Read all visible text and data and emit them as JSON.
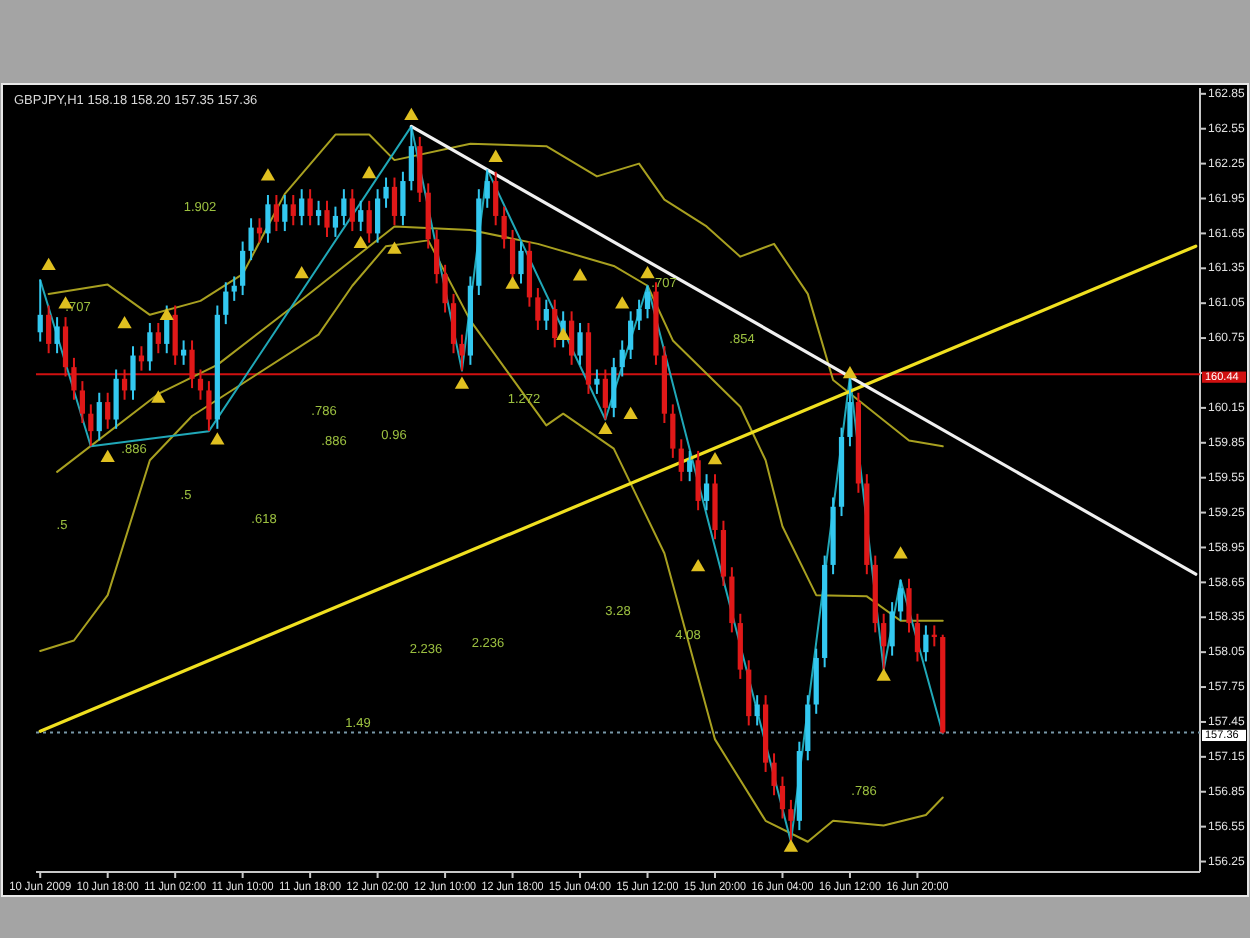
{
  "chart_data": {
    "type": "candlestick",
    "title": "GBPJPY,H1  158.18 158.20 157.35 157.36",
    "categories": [
      "10 Jun 2009",
      null,
      null,
      null,
      null,
      null,
      null,
      null,
      "10 Jun 18:00",
      null,
      null,
      null,
      null,
      null,
      null,
      null,
      "11 Jun 02:00",
      null,
      null,
      null,
      null,
      null,
      null,
      null,
      "11 Jun 10:00",
      null,
      null,
      null,
      null,
      null,
      null,
      null,
      "11 Jun 18:00",
      null,
      null,
      null,
      null,
      null,
      null,
      null,
      "12 Jun 02:00",
      null,
      null,
      null,
      null,
      null,
      null,
      null,
      "12 Jun 10:00",
      null,
      null,
      null,
      null,
      null,
      null,
      null,
      "12 Jun 18:00",
      null,
      null,
      null,
      null,
      null,
      null,
      null,
      "15 Jun 04:00",
      null,
      null,
      null,
      null,
      null,
      null,
      null,
      "15 Jun 12:00",
      null,
      null,
      null,
      null,
      null,
      null,
      null,
      "15 Jun 20:00",
      null,
      null,
      null,
      null,
      null,
      null,
      null,
      "16 Jun 04:00",
      null,
      null,
      null,
      null,
      null,
      null,
      null,
      "16 Jun 12:00",
      null,
      null,
      null,
      null,
      null,
      null,
      null,
      "16 Jun 20:00",
      null,
      null,
      null,
      null,
      null,
      null,
      null,
      null,
      null,
      null,
      null,
      null,
      null,
      null,
      null,
      null,
      null,
      null,
      null,
      null,
      null,
      null,
      null,
      null,
      null,
      null,
      null,
      null,
      null,
      null,
      null,
      null,
      null
    ],
    "ohlc": [
      [
        160.8,
        161.25,
        160.72,
        160.95
      ],
      [
        160.95,
        161.03,
        160.62,
        160.7
      ],
      [
        160.7,
        160.93,
        160.62,
        160.85
      ],
      [
        160.85,
        160.93,
        160.42,
        160.5
      ],
      [
        160.5,
        160.58,
        160.22,
        160.3
      ],
      [
        160.3,
        160.38,
        160.02,
        160.1
      ],
      [
        160.1,
        160.18,
        159.82,
        159.95
      ],
      [
        159.95,
        160.28,
        159.87,
        160.2
      ],
      [
        160.2,
        160.28,
        159.97,
        160.05
      ],
      [
        160.05,
        160.48,
        159.97,
        160.4
      ],
      [
        160.4,
        160.48,
        160.22,
        160.3
      ],
      [
        160.3,
        160.68,
        160.22,
        160.6
      ],
      [
        160.6,
        160.68,
        160.47,
        160.55
      ],
      [
        160.55,
        160.88,
        160.47,
        160.8
      ],
      [
        160.8,
        160.88,
        160.62,
        160.7
      ],
      [
        160.7,
        161.03,
        160.62,
        160.95
      ],
      [
        160.95,
        161.03,
        160.52,
        160.6
      ],
      [
        160.6,
        160.73,
        160.52,
        160.65
      ],
      [
        160.65,
        160.73,
        160.32,
        160.4
      ],
      [
        160.4,
        160.48,
        160.22,
        160.3
      ],
      [
        160.3,
        160.38,
        159.95,
        160.05
      ],
      [
        160.05,
        161.03,
        159.97,
        160.95
      ],
      [
        160.95,
        161.23,
        160.87,
        161.15
      ],
      [
        161.15,
        161.28,
        161.07,
        161.2
      ],
      [
        161.2,
        161.58,
        161.12,
        161.5
      ],
      [
        161.5,
        161.78,
        161.42,
        161.7
      ],
      [
        161.7,
        161.78,
        161.57,
        161.65
      ],
      [
        161.65,
        161.98,
        161.57,
        161.9
      ],
      [
        161.9,
        161.98,
        161.67,
        161.75
      ],
      [
        161.75,
        161.98,
        161.67,
        161.9
      ],
      [
        161.9,
        161.98,
        161.72,
        161.8
      ],
      [
        161.8,
        162.03,
        161.72,
        161.95
      ],
      [
        161.95,
        162.03,
        161.72,
        161.8
      ],
      [
        161.8,
        161.93,
        161.72,
        161.85
      ],
      [
        161.85,
        161.93,
        161.62,
        161.7
      ],
      [
        161.7,
        161.88,
        161.62,
        161.8
      ],
      [
        161.8,
        162.03,
        161.72,
        161.95
      ],
      [
        161.95,
        162.03,
        161.67,
        161.75
      ],
      [
        161.75,
        161.93,
        161.67,
        161.85
      ],
      [
        161.85,
        161.93,
        161.57,
        161.65
      ],
      [
        161.65,
        162.03,
        161.57,
        161.95
      ],
      [
        161.95,
        162.13,
        161.87,
        162.05
      ],
      [
        162.05,
        162.13,
        161.72,
        161.8
      ],
      [
        161.8,
        162.18,
        161.72,
        162.1
      ],
      [
        162.1,
        162.57,
        162.02,
        162.4
      ],
      [
        162.4,
        162.48,
        161.92,
        162.0
      ],
      [
        162.0,
        162.08,
        161.52,
        161.6
      ],
      [
        161.6,
        161.68,
        161.22,
        161.3
      ],
      [
        161.3,
        161.38,
        160.97,
        161.05
      ],
      [
        161.05,
        161.13,
        160.62,
        160.7
      ],
      [
        160.7,
        160.78,
        160.47,
        160.6
      ],
      [
        160.6,
        161.28,
        160.52,
        161.2
      ],
      [
        161.2,
        162.03,
        161.12,
        161.95
      ],
      [
        161.95,
        162.2,
        161.87,
        162.1
      ],
      [
        162.1,
        162.18,
        161.72,
        161.8
      ],
      [
        161.8,
        161.88,
        161.52,
        161.6
      ],
      [
        161.6,
        161.68,
        161.22,
        161.3
      ],
      [
        161.3,
        161.58,
        161.22,
        161.5
      ],
      [
        161.5,
        161.58,
        161.02,
        161.1
      ],
      [
        161.1,
        161.18,
        160.82,
        160.9
      ],
      [
        160.9,
        161.08,
        160.82,
        161.0
      ],
      [
        161.0,
        161.08,
        160.67,
        160.75
      ],
      [
        160.75,
        160.98,
        160.67,
        160.9
      ],
      [
        160.9,
        160.98,
        160.52,
        160.6
      ],
      [
        160.6,
        160.88,
        160.52,
        160.8
      ],
      [
        160.8,
        160.88,
        160.27,
        160.35
      ],
      [
        160.35,
        160.48,
        160.27,
        160.4
      ],
      [
        160.4,
        160.48,
        160.05,
        160.15
      ],
      [
        160.15,
        160.58,
        160.07,
        160.5
      ],
      [
        160.5,
        160.73,
        160.42,
        160.65
      ],
      [
        160.65,
        160.98,
        160.57,
        160.9
      ],
      [
        160.9,
        161.08,
        160.82,
        161.0
      ],
      [
        161.0,
        161.2,
        160.92,
        161.15
      ],
      [
        161.15,
        161.23,
        160.52,
        160.6
      ],
      [
        160.6,
        160.68,
        160.02,
        160.1
      ],
      [
        160.1,
        160.18,
        159.72,
        159.8
      ],
      [
        159.8,
        159.88,
        159.52,
        159.6
      ],
      [
        159.6,
        159.78,
        159.52,
        159.7
      ],
      [
        159.7,
        159.78,
        159.27,
        159.35
      ],
      [
        159.35,
        159.58,
        159.27,
        159.5
      ],
      [
        159.5,
        159.58,
        159.02,
        159.1
      ],
      [
        159.1,
        159.18,
        158.62,
        158.7
      ],
      [
        158.7,
        158.78,
        158.22,
        158.3
      ],
      [
        158.3,
        158.38,
        157.82,
        157.9
      ],
      [
        157.9,
        157.98,
        157.42,
        157.5
      ],
      [
        157.5,
        157.68,
        157.42,
        157.6
      ],
      [
        157.6,
        157.68,
        157.02,
        157.1
      ],
      [
        157.1,
        157.18,
        156.82,
        156.9
      ],
      [
        156.9,
        156.98,
        156.62,
        156.7
      ],
      [
        156.7,
        156.78,
        156.42,
        156.6
      ],
      [
        156.6,
        157.28,
        156.52,
        157.2
      ],
      [
        157.2,
        157.68,
        157.12,
        157.6
      ],
      [
        157.6,
        158.08,
        157.52,
        158.0
      ],
      [
        158.0,
        158.88,
        157.92,
        158.8
      ],
      [
        158.8,
        159.38,
        158.72,
        159.3
      ],
      [
        159.3,
        159.98,
        159.22,
        159.9
      ],
      [
        159.9,
        160.42,
        159.82,
        160.2
      ],
      [
        160.2,
        160.28,
        159.42,
        159.5
      ],
      [
        159.5,
        159.58,
        158.72,
        158.8
      ],
      [
        158.8,
        158.88,
        158.22,
        158.3
      ],
      [
        158.3,
        158.38,
        157.9,
        158.1
      ],
      [
        158.1,
        158.48,
        158.02,
        158.4
      ],
      [
        158.4,
        158.67,
        158.32,
        158.6
      ],
      [
        158.6,
        158.68,
        158.22,
        158.3
      ],
      [
        158.3,
        158.38,
        157.97,
        158.05
      ],
      [
        158.05,
        158.28,
        157.97,
        158.2
      ],
      [
        158.2,
        158.28,
        158.1,
        158.18
      ],
      [
        158.18,
        158.2,
        157.35,
        157.36
      ],
      null,
      null,
      null,
      null,
      null,
      null,
      null,
      null,
      null,
      null,
      null,
      null,
      null,
      null,
      null,
      null,
      null,
      null,
      null,
      null,
      null,
      null,
      null,
      null,
      null,
      null,
      null,
      null,
      null,
      null
    ],
    "colors": [
      "#33c8f0",
      "#e01818",
      "#33c8f0",
      "#e01818",
      "#e01818",
      "#e01818",
      "#e01818",
      "#33c8f0",
      "#e01818",
      "#33c8f0",
      "#e01818",
      "#33c8f0",
      "#e01818",
      "#33c8f0",
      "#e01818",
      "#33c8f0",
      "#e01818",
      "#33c8f0",
      "#e01818",
      "#e01818",
      "#e01818",
      "#33c8f0",
      "#33c8f0",
      "#33c8f0",
      "#33c8f0",
      "#33c8f0",
      "#e01818",
      "#33c8f0",
      "#e01818",
      "#33c8f0",
      "#e01818",
      "#33c8f0",
      "#e01818",
      "#33c8f0",
      "#e01818",
      "#33c8f0",
      "#33c8f0",
      "#e01818",
      "#33c8f0",
      "#e01818",
      "#33c8f0",
      "#33c8f0",
      "#e01818",
      "#33c8f0",
      "#33c8f0",
      "#e01818",
      "#e01818",
      "#e01818",
      "#e01818",
      "#e01818",
      "#e01818",
      "#33c8f0",
      "#33c8f0",
      "#33c8f0",
      "#e01818",
      "#e01818",
      "#e01818",
      "#33c8f0",
      "#e01818",
      "#e01818",
      "#33c8f0",
      "#e01818",
      "#33c8f0",
      "#e01818",
      "#33c8f0",
      "#e01818",
      "#33c8f0",
      "#e01818",
      "#33c8f0",
      "#33c8f0",
      "#33c8f0",
      "#33c8f0",
      "#33c8f0",
      "#e01818",
      "#e01818",
      "#e01818",
      "#e01818",
      "#33c8f0",
      "#e01818",
      "#33c8f0",
      "#e01818",
      "#e01818",
      "#e01818",
      "#e01818",
      "#e01818",
      "#33c8f0",
      "#e01818",
      "#e01818",
      "#e01818",
      "#e01818",
      "#33c8f0",
      "#33c8f0",
      "#33c8f0",
      "#33c8f0",
      "#33c8f0",
      "#33c8f0",
      "#33c8f0",
      "#e01818",
      "#e01818",
      "#e01818",
      "#e01818",
      "#33c8f0",
      "#33c8f0",
      "#e01818",
      "#e01818",
      "#33c8f0",
      "#e01818",
      "#e01818",
      null,
      null,
      null,
      null,
      null,
      null,
      null,
      null,
      null,
      null,
      null,
      null,
      null,
      null,
      null,
      null,
      null,
      null,
      null,
      null,
      null,
      null,
      null,
      null,
      null,
      null,
      null,
      null,
      null,
      null
    ],
    "series": [
      {
        "type": "line",
        "color": "#a8a020",
        "values": [
          null,
          161.13,
          null,
          null,
          null,
          null,
          null,
          null,
          161.21,
          null,
          null,
          null,
          null,
          160.95,
          null,
          null,
          null,
          null,
          null,
          161.07,
          null,
          null,
          null,
          null,
          161.3,
          null,
          null,
          null,
          null,
          161.99,
          null,
          null,
          null,
          null,
          null,
          162.5,
          null,
          null,
          null,
          162.5,
          null,
          null,
          162.28,
          null,
          null,
          null,
          null,
          null,
          null,
          null,
          null,
          162.42,
          null,
          null,
          null,
          null,
          null,
          null,
          null,
          null,
          162.4,
          null,
          null,
          null,
          null,
          null,
          162.14,
          null,
          null,
          null,
          null,
          162.25,
          null,
          null,
          161.94,
          null,
          null,
          null,
          null,
          161.71,
          null,
          null,
          null,
          161.45,
          null,
          null,
          null,
          161.56,
          null,
          null,
          null,
          161.13,
          null,
          null,
          160.39,
          null,
          null,
          null,
          null,
          null,
          null,
          null,
          null,
          159.87,
          null,
          null,
          null,
          159.82,
          null,
          null,
          null,
          null,
          null,
          null,
          null,
          null,
          null,
          null,
          null,
          null,
          null,
          null,
          null,
          null,
          null,
          null,
          null,
          null,
          null,
          null,
          null,
          null,
          null,
          null,
          null,
          null,
          null,
          null
        ]
      },
      {
        "type": "line",
        "color": "#a8a020",
        "values": [
          null,
          null,
          159.6,
          null,
          null,
          null,
          null,
          null,
          null,
          null,
          null,
          null,
          null,
          null,
          160.27,
          null,
          null,
          null,
          null,
          null,
          null,
          160.52,
          null,
          null,
          null,
          null,
          null,
          null,
          null,
          null,
          null,
          161.08,
          null,
          null,
          null,
          null,
          null,
          null,
          null,
          null,
          null,
          null,
          161.71,
          null,
          null,
          null,
          null,
          null,
          null,
          null,
          null,
          161.68,
          null,
          null,
          null,
          null,
          null,
          null,
          null,
          161.56,
          null,
          null,
          null,
          null,
          null,
          null,
          null,
          null,
          161.37,
          null,
          null,
          null,
          161.2,
          null,
          null,
          160.73,
          null,
          null,
          null,
          null,
          null,
          null,
          null,
          160.16,
          null,
          null,
          159.7,
          null,
          159.13,
          null,
          null,
          null,
          158.54,
          null,
          null,
          null,
          null,
          null,
          158.53,
          null,
          null,
          null,
          158.32,
          null,
          null,
          null,
          null,
          158.32,
          null,
          null,
          null,
          null,
          null,
          null,
          null,
          null,
          null,
          null,
          null,
          null,
          null,
          null,
          null,
          null,
          null,
          null,
          null,
          null,
          null,
          null,
          null,
          null,
          null,
          null,
          null,
          null,
          null,
          null
        ]
      },
      {
        "type": "line",
        "color": "#a8a020",
        "values": [
          158.06,
          null,
          null,
          null,
          158.15,
          null,
          null,
          null,
          158.54,
          null,
          null,
          null,
          null,
          159.7,
          null,
          null,
          null,
          null,
          160.08,
          null,
          null,
          null,
          null,
          null,
          null,
          null,
          null,
          null,
          null,
          null,
          null,
          null,
          null,
          160.78,
          null,
          null,
          null,
          161.2,
          null,
          null,
          null,
          161.54,
          null,
          null,
          null,
          null,
          161.59,
          null,
          null,
          null,
          null,
          160.9,
          null,
          null,
          null,
          null,
          null,
          null,
          null,
          null,
          160.0,
          null,
          160.1,
          null,
          null,
          null,
          null,
          null,
          159.8,
          null,
          null,
          null,
          null,
          null,
          158.9,
          null,
          null,
          null,
          null,
          null,
          157.3,
          null,
          null,
          null,
          null,
          null,
          156.6,
          null,
          null,
          null,
          null,
          156.42,
          null,
          null,
          156.6,
          null,
          null,
          null,
          null,
          null,
          156.56,
          null,
          null,
          null,
          null,
          156.65,
          null,
          156.8,
          null,
          null,
          null,
          null,
          null,
          null,
          null,
          null,
          null,
          null,
          null,
          null,
          null,
          null,
          null,
          null,
          null,
          null,
          null,
          null,
          null,
          null,
          null,
          null,
          null,
          null,
          null,
          null,
          null,
          null
        ]
      },
      {
        "type": "line",
        "color": "#20a8b8",
        "values": [
          161.25,
          null,
          null,
          null,
          null,
          null,
          159.82,
          null,
          null,
          null,
          null,
          null,
          null,
          null,
          null,
          null,
          null,
          null,
          null,
          null,
          159.95,
          null,
          null,
          null,
          null,
          null,
          null,
          null,
          null,
          null,
          null,
          null,
          null,
          null,
          null,
          null,
          null,
          null,
          null,
          null,
          null,
          null,
          null,
          null,
          162.57,
          null,
          null,
          null,
          null,
          null,
          160.47,
          null,
          null,
          162.2,
          null,
          null,
          null,
          null,
          null,
          null,
          null,
          null,
          null,
          null,
          null,
          null,
          null,
          160.05,
          null,
          null,
          null,
          null,
          161.2,
          null,
          null,
          null,
          null,
          null,
          null,
          null,
          null,
          null,
          null,
          null,
          null,
          null,
          null,
          null,
          null,
          156.42,
          null,
          null,
          null,
          null,
          null,
          null,
          160.42,
          null,
          null,
          null,
          157.9,
          null,
          158.67,
          null,
          null,
          null,
          null,
          157.35,
          null,
          null,
          null,
          null,
          null,
          null,
          null,
          null,
          null,
          null,
          null,
          null,
          null,
          null,
          null,
          null,
          null,
          null,
          null,
          null,
          null,
          null,
          null,
          null,
          null,
          null,
          null,
          null,
          null,
          null
        ]
      },
      {
        "type": "line",
        "color": "#f0e020",
        "values": [
          157.37,
          null,
          null,
          null,
          null,
          null,
          null,
          null,
          null,
          null,
          null,
          null,
          null,
          null,
          null,
          null,
          null,
          null,
          null,
          null,
          null,
          null,
          null,
          null,
          null,
          null,
          null,
          null,
          null,
          null,
          null,
          null,
          null,
          null,
          null,
          null,
          null,
          null,
          null,
          null,
          null,
          null,
          null,
          null,
          null,
          null,
          null,
          null,
          null,
          null,
          null,
          null,
          null,
          null,
          null,
          null,
          null,
          null,
          null,
          null,
          null,
          null,
          null,
          null,
          null,
          null,
          null,
          null,
          null,
          null,
          null,
          null,
          null,
          null,
          null,
          null,
          null,
          null,
          null,
          null,
          null,
          null,
          null,
          null,
          null,
          null,
          null,
          null,
          null,
          null,
          null,
          null,
          null,
          null,
          null,
          null,
          null,
          null,
          null,
          null,
          null,
          null,
          null,
          null,
          null,
          null,
          null,
          null,
          null,
          null,
          null,
          null,
          null,
          null,
          null,
          null,
          null,
          null,
          null,
          null,
          null,
          null,
          null,
          null,
          null,
          null,
          null,
          null,
          null,
          null,
          null,
          null,
          null,
          null,
          null,
          null,
          null,
          161.54
        ]
      },
      {
        "type": "line",
        "color": "#f0f0f0",
        "values": [
          null,
          null,
          null,
          null,
          null,
          null,
          null,
          null,
          null,
          null,
          null,
          null,
          null,
          null,
          null,
          null,
          null,
          null,
          null,
          null,
          null,
          null,
          null,
          null,
          null,
          null,
          null,
          null,
          null,
          null,
          null,
          null,
          null,
          null,
          null,
          null,
          null,
          null,
          null,
          null,
          null,
          null,
          null,
          null,
          162.57,
          null,
          null,
          null,
          null,
          null,
          null,
          null,
          null,
          null,
          null,
          null,
          null,
          null,
          null,
          null,
          null,
          null,
          null,
          null,
          null,
          null,
          null,
          null,
          null,
          null,
          null,
          null,
          null,
          null,
          null,
          null,
          null,
          null,
          null,
          null,
          null,
          null,
          null,
          null,
          null,
          null,
          null,
          null,
          null,
          null,
          null,
          null,
          null,
          null,
          null,
          null,
          null,
          null,
          null,
          null,
          null,
          null,
          null,
          null,
          null,
          null,
          null,
          null,
          null,
          null,
          null,
          null,
          null,
          null,
          null,
          null,
          null,
          null,
          null,
          null,
          null,
          null,
          null,
          null,
          null,
          null,
          null,
          null,
          null,
          null,
          null,
          null,
          null,
          null,
          null,
          null,
          null,
          158.72
        ]
      },
      {
        "type": "scatter",
        "color": "#e0c020",
        "marker": "triangle",
        "values": [
          null,
          161.37,
          null,
          161.04,
          null,
          null,
          null,
          null,
          null,
          null,
          160.87,
          null,
          null,
          null,
          null,
          160.94,
          null,
          null,
          null,
          null,
          null,
          null,
          null,
          null,
          null,
          null,
          null,
          162.14,
          null,
          null,
          null,
          null,
          null,
          null,
          null,
          null,
          null,
          null,
          null,
          162.16,
          null,
          null,
          null,
          null,
          162.66,
          null,
          null,
          null,
          null,
          null,
          null,
          null,
          null,
          null,
          162.3,
          null,
          null,
          null,
          null,
          null,
          null,
          null,
          null,
          null,
          161.28,
          null,
          null,
          null,
          null,
          161.04,
          null,
          null,
          161.3,
          null,
          null,
          null,
          null,
          null,
          null,
          null,
          159.7,
          null,
          null,
          null,
          null,
          null,
          null,
          null,
          null,
          null,
          null,
          null,
          null,
          null,
          null,
          null,
          160.44,
          null,
          null,
          null,
          null,
          null,
          158.89,
          null,
          null,
          null,
          null,
          null,
          null,
          null,
          null,
          null,
          null,
          null,
          null,
          null,
          null,
          null,
          null,
          null,
          null,
          null,
          null,
          null,
          null,
          null,
          null,
          null,
          null,
          null,
          null,
          null,
          null,
          null,
          null,
          null,
          null,
          null
        ]
      },
      {
        "type": "scatter",
        "color": "#e0c020",
        "marker": "triangle",
        "values": [
          null,
          null,
          null,
          null,
          null,
          null,
          null,
          null,
          159.72,
          null,
          null,
          null,
          null,
          null,
          160.23,
          null,
          null,
          null,
          null,
          null,
          null,
          159.87,
          null,
          null,
          null,
          null,
          null,
          null,
          null,
          null,
          null,
          161.3,
          null,
          null,
          null,
          null,
          null,
          null,
          161.56,
          null,
          null,
          null,
          161.51,
          null,
          null,
          null,
          null,
          null,
          null,
          null,
          160.35,
          null,
          null,
          null,
          null,
          null,
          161.21,
          null,
          null,
          null,
          null,
          null,
          160.77,
          null,
          null,
          null,
          null,
          159.96,
          null,
          null,
          160.09,
          null,
          null,
          null,
          null,
          null,
          null,
          null,
          158.78,
          null,
          null,
          null,
          null,
          null,
          null,
          null,
          null,
          null,
          null,
          156.37,
          null,
          null,
          null,
          null,
          null,
          null,
          null,
          null,
          null,
          null,
          157.84,
          null,
          null,
          null,
          null,
          null,
          null,
          null,
          null,
          null,
          null,
          null,
          null,
          null,
          null,
          null,
          null,
          null,
          null,
          null,
          null,
          null,
          null,
          null,
          null,
          null,
          null,
          null,
          null,
          null,
          null,
          null,
          null,
          null,
          null,
          null,
          null,
          null
        ]
      }
    ],
    "ylim": [
      156.16,
      162.9
    ],
    "yticks": [
      162.85,
      162.55,
      162.25,
      161.95,
      161.65,
      161.35,
      161.05,
      160.75,
      {
        "value": 160.45,
        "label": null
      },
      160.15,
      159.85,
      159.55,
      159.25,
      158.95,
      158.65,
      158.35,
      158.05,
      157.75,
      157.45,
      157.15,
      156.85,
      156.55,
      156.25
    ],
    "ref_lines": [
      {
        "axis": "y",
        "value": 160.44,
        "label": "160.44",
        "color": "#d01010",
        "line_style": "solid"
      },
      {
        "axis": "y",
        "value": 157.36,
        "label": "157.36",
        "color": "#7898a8",
        "line_style": "dotted"
      }
    ],
    "annotations": [
      ".707",
      "1.902",
      ".886",
      ".786",
      ".886",
      "0.96",
      "1.272",
      ".707",
      ".854",
      ".5",
      ".5",
      ".618",
      "2.236",
      "2.236",
      "3.28",
      "1.49",
      "4.08",
      ".786"
    ]
  }
}
